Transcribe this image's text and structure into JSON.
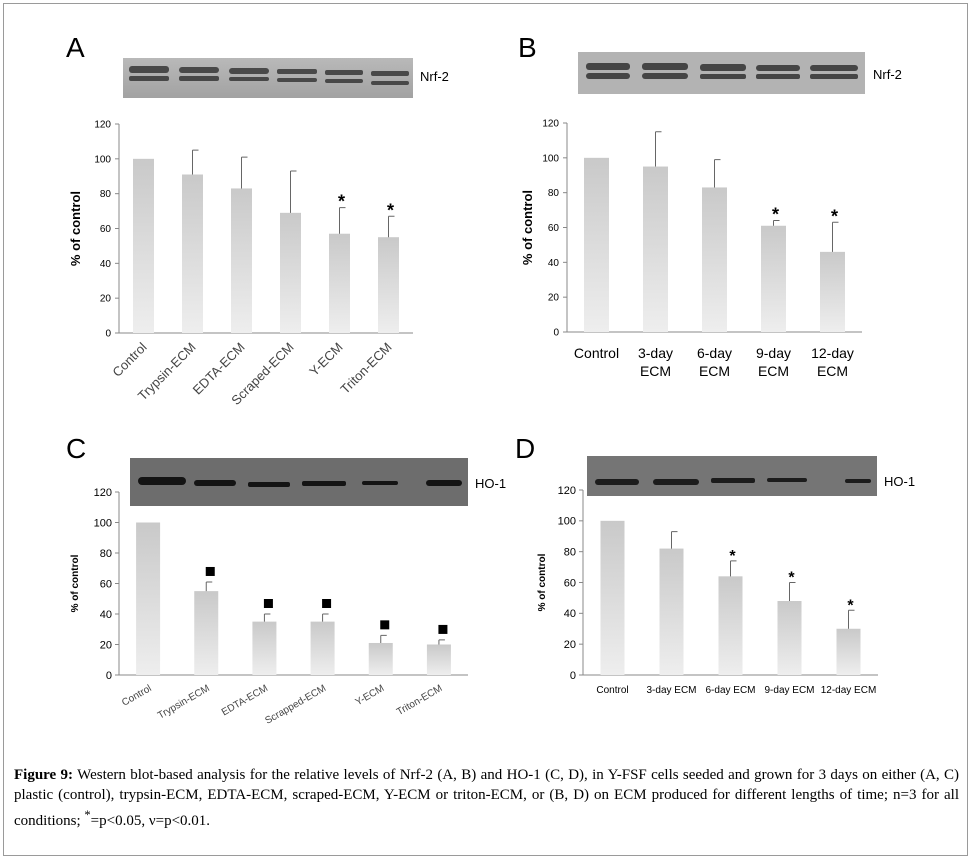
{
  "caption": {
    "label": "Figure 9:",
    "text_part1": " Western blot-based analysis for the relative levels of Nrf-2 (A, B) and HO-1 (C, D), in Y-FSF cells seeded and grown for 3 days on either (A, C) plastic (control), trypsin-ECM, EDTA-ECM, scraped-ECM, Y-ECM or triton-ECM, or (B, D) on ECM produced for different lengths of time; n=3 for all conditions; ",
    "sup": "*",
    "text_part2": "=p<0.05, ν=p<0.01."
  },
  "panels": {
    "A": {
      "letter": "A",
      "blot_label": "Nrf-2"
    },
    "B": {
      "letter": "B",
      "blot_label": "Nrf-2"
    },
    "C": {
      "letter": "C",
      "blot_label": "HO-1"
    },
    "D": {
      "letter": "D",
      "blot_label": "HO-1"
    }
  },
  "colors": {
    "bar_top": "#c9c9c9",
    "bar_bottom": "#eeeeee",
    "axis": "#888888",
    "marker": "#000000"
  },
  "chart_data": [
    {
      "panel": "A",
      "type": "bar",
      "ylabel": "% of control",
      "ylim": [
        0,
        120
      ],
      "yticks": [
        0,
        20,
        40,
        60,
        80,
        100,
        120
      ],
      "categories": [
        "Control",
        "Trypsin-ECM",
        "EDTA-ECM",
        "Scraped-ECM",
        "Y-ECM",
        "Triton-ECM"
      ],
      "values": [
        100,
        91,
        83,
        69,
        57,
        55
      ],
      "errors": [
        0,
        14,
        18,
        24,
        15,
        12
      ],
      "markers": [
        "",
        "",
        "",
        "",
        "*",
        "*"
      ]
    },
    {
      "panel": "B",
      "type": "bar",
      "ylabel": "% of control",
      "ylim": [
        0,
        120
      ],
      "yticks": [
        0,
        20,
        40,
        60,
        80,
        100,
        120
      ],
      "categories": [
        [
          "Control"
        ],
        [
          "3-day",
          "ECM"
        ],
        [
          "6-day",
          "ECM"
        ],
        [
          "9-day",
          "ECM"
        ],
        [
          "12-day",
          "ECM"
        ]
      ],
      "values": [
        100,
        95,
        83,
        61,
        46
      ],
      "errors": [
        0,
        20,
        16,
        3,
        17
      ],
      "markers": [
        "",
        "",
        "",
        "*",
        "*"
      ]
    },
    {
      "panel": "C",
      "type": "bar",
      "ylabel": "% of control",
      "ylim": [
        0,
        120
      ],
      "yticks": [
        0,
        20,
        40,
        60,
        80,
        100,
        120
      ],
      "categories": [
        "Control",
        "Trypsin-ECM",
        "EDTA-ECM",
        "Scrapped-ECM",
        "Y-ECM",
        "Triton-ECM"
      ],
      "values": [
        100,
        55,
        35,
        35,
        21,
        20
      ],
      "errors": [
        0,
        6,
        5,
        5,
        5,
        3
      ],
      "markers": [
        "",
        "square",
        "square",
        "square",
        "square",
        "square"
      ]
    },
    {
      "panel": "D",
      "type": "bar",
      "ylabel": "% of control",
      "ylim": [
        0,
        120
      ],
      "yticks": [
        0,
        20,
        40,
        60,
        80,
        100,
        120
      ],
      "categories": [
        "Control",
        "3-day ECM",
        "6-day ECM",
        "9-day ECM",
        "12-day ECM"
      ],
      "values": [
        100,
        82,
        64,
        48,
        30
      ],
      "errors": [
        0,
        11,
        10,
        12,
        12
      ],
      "markers": [
        "",
        "",
        "*",
        "*",
        "*"
      ]
    }
  ]
}
